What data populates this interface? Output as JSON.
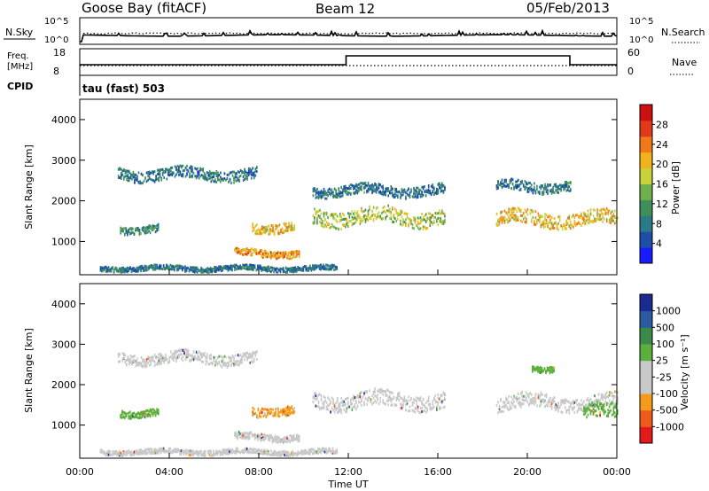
{
  "header": {
    "station": "Goose Bay (fitACF)",
    "beam": "Beam 12",
    "date": "05/Feb/2013"
  },
  "summary": {
    "nsky_label": "N.Sky",
    "nsky_tick_hi": "10^5",
    "nsky_tick_lo": "10^0",
    "nsearch_label": "N.Search",
    "freq_label_1": "Freq.",
    "freq_label_2": "[MHz]",
    "freq_ticks": [
      "18",
      "8"
    ],
    "nave_label": "Nave",
    "nave_ticks": [
      "60",
      "0"
    ],
    "cpid_label": "CPID",
    "cpid_value": "tau (fast) 503"
  },
  "colors": {
    "power": [
      "#1a1aff",
      "#1d4fa8",
      "#2b7a8a",
      "#3e8f5a",
      "#6fb04a",
      "#c8d23a",
      "#f2b21c",
      "#f07a1a",
      "#e03a1a",
      "#cc1010"
    ],
    "velocity": [
      "#e21a1a",
      "#ef5a1a",
      "#f59a1a",
      "#c9c9c9",
      "#c9c9c9",
      "#5ab03a",
      "#3a8a4a",
      "#2a5aa0",
      "#1a2a90"
    ]
  },
  "chart_data": [
    {
      "type": "heatmap",
      "panel": "power",
      "xlabel": "",
      "ylabel": "Slant Range [km]",
      "x_ticks": [
        "00:00",
        "04:00",
        "08:00",
        "12:00",
        "16:00",
        "20:00",
        "00:00"
      ],
      "y_ticks": [
        1000,
        2000,
        3000,
        4000
      ],
      "xlim": [
        0,
        24
      ],
      "ylim": [
        180,
        4500
      ],
      "colorbar": {
        "label": "Power [dB]",
        "ticks": [
          4,
          8,
          12,
          16,
          20,
          24,
          28
        ],
        "range": [
          0,
          32
        ]
      },
      "echo_regions": [
        {
          "t0": 1.7,
          "t1": 7.9,
          "r_center": 2650,
          "r_thick": 280,
          "value": 8
        },
        {
          "t0": 1.8,
          "t1": 3.5,
          "r_center": 1300,
          "r_thick": 180,
          "value": 10
        },
        {
          "t0": 6.9,
          "t1": 9.8,
          "r_center": 700,
          "r_thick": 170,
          "value": 22
        },
        {
          "t0": 7.7,
          "t1": 9.6,
          "r_center": 1350,
          "r_thick": 230,
          "value": 20
        },
        {
          "t0": 10.4,
          "t1": 16.3,
          "r_center": 1600,
          "r_thick": 380,
          "value": 16
        },
        {
          "t0": 10.4,
          "t1": 16.3,
          "r_center": 2250,
          "r_thick": 250,
          "value": 8
        },
        {
          "t0": 18.6,
          "t1": 24.0,
          "r_center": 1550,
          "r_thick": 350,
          "value": 20
        },
        {
          "t0": 18.6,
          "t1": 21.9,
          "r_center": 2350,
          "r_thick": 250,
          "value": 8
        },
        {
          "t0": 0.9,
          "t1": 11.5,
          "r_center": 330,
          "r_thick": 120,
          "value": 8
        }
      ]
    },
    {
      "type": "heatmap",
      "panel": "velocity",
      "xlabel": "Time UT",
      "ylabel": "Slant Range [km]",
      "x_ticks": [
        "00:00",
        "04:00",
        "08:00",
        "12:00",
        "16:00",
        "20:00",
        "00:00"
      ],
      "y_ticks": [
        1000,
        2000,
        3000,
        4000
      ],
      "xlim": [
        0,
        24
      ],
      "ylim": [
        180,
        4500
      ],
      "colorbar": {
        "label": "Velocity [m s⁻¹]",
        "ticks": [
          "-1000",
          "-500",
          "-100",
          "-25",
          "25",
          "100",
          "500",
          "1000"
        ]
      },
      "echo_regions": [
        {
          "t0": 1.7,
          "t1": 7.9,
          "r_center": 2650,
          "r_thick": 280,
          "value": "-25"
        },
        {
          "t0": 1.8,
          "t1": 3.5,
          "r_center": 1300,
          "r_thick": 180,
          "value": "100"
        },
        {
          "t0": 6.9,
          "t1": 9.8,
          "r_center": 700,
          "r_thick": 170,
          "value": "-25"
        },
        {
          "t0": 7.7,
          "t1": 9.6,
          "r_center": 1350,
          "r_thick": 230,
          "value": "-100"
        },
        {
          "t0": 10.4,
          "t1": 16.3,
          "r_center": 1600,
          "r_thick": 380,
          "value": "-25"
        },
        {
          "t0": 18.6,
          "t1": 24.0,
          "r_center": 1550,
          "r_thick": 350,
          "value": "-25"
        },
        {
          "t0": 22.5,
          "t1": 24.0,
          "r_center": 1300,
          "r_thick": 350,
          "value": "100"
        },
        {
          "t0": 20.2,
          "t1": 21.2,
          "r_center": 2400,
          "r_thick": 150,
          "value": "100"
        },
        {
          "t0": 0.9,
          "t1": 11.5,
          "r_center": 330,
          "r_thick": 120,
          "value": "-25"
        }
      ]
    }
  ]
}
